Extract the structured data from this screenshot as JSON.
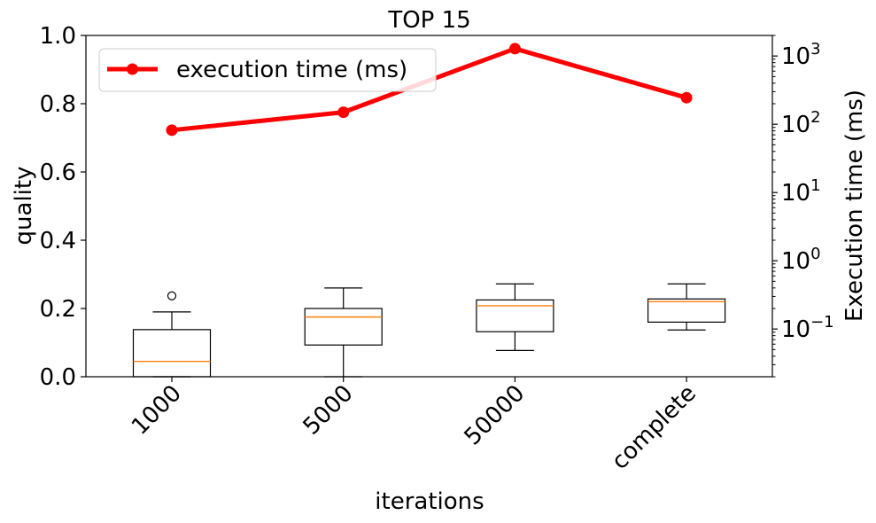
{
  "chart_data": {
    "type": "box",
    "title": "TOP 15",
    "xlabel": "iterations",
    "ylabel_left": "quality",
    "ylabel_right": "Execution time (ms)",
    "categories": [
      "1000",
      "5000",
      "50000",
      "complete"
    ],
    "left_axis": {
      "ylim": [
        0.0,
        1.0
      ],
      "ticks": [
        0.0,
        0.2,
        0.4,
        0.6,
        0.8,
        1.0
      ],
      "tick_labels": [
        "0.0",
        "0.2",
        "0.4",
        "0.6",
        "0.8",
        "1.0"
      ]
    },
    "right_axis": {
      "scale": "log",
      "ylim": [
        0.02,
        2000
      ],
      "major_ticks": [
        0.1,
        1,
        10,
        100,
        1000
      ],
      "tick_labels": [
        {
          "base": "10",
          "exp": "−1"
        },
        {
          "base": "10",
          "exp": "0"
        },
        {
          "base": "10",
          "exp": "1"
        },
        {
          "base": "10",
          "exp": "2"
        },
        {
          "base": "10",
          "exp": "3"
        }
      ]
    },
    "boxes": [
      {
        "category": "1000",
        "whisker_low": 0.0,
        "q1": 0.0,
        "median": 0.045,
        "q3": 0.138,
        "whisker_high": 0.19,
        "outliers": [
          0.237
        ]
      },
      {
        "category": "5000",
        "whisker_low": 0.0,
        "q1": 0.093,
        "median": 0.175,
        "q3": 0.2,
        "whisker_high": 0.26,
        "outliers": []
      },
      {
        "category": "50000",
        "whisker_low": 0.077,
        "q1": 0.132,
        "median": 0.208,
        "q3": 0.225,
        "whisker_high": 0.272,
        "outliers": []
      },
      {
        "category": "complete",
        "whisker_low": 0.137,
        "q1": 0.16,
        "median": 0.22,
        "q3": 0.228,
        "whisker_high": 0.272,
        "outliers": []
      }
    ],
    "series": [
      {
        "name": "execution time (ms)",
        "axis": "right",
        "values": [
          82,
          150,
          1280,
          245
        ],
        "color": "#ff0000"
      }
    ],
    "legend_position": "top-left",
    "grid": false,
    "colors": {
      "median": "#ff7f0e",
      "box": "#000000",
      "line": "#ff0000"
    }
  }
}
